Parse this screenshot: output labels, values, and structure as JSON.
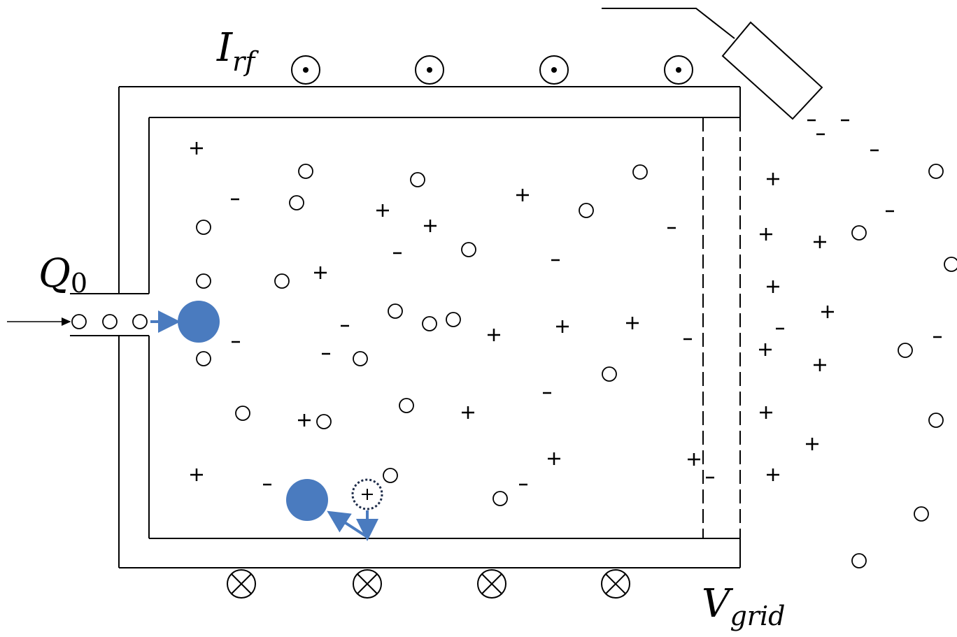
{
  "labels": {
    "current": {
      "symbol": "I",
      "subscript": "rf"
    },
    "flow": {
      "symbol": "Q",
      "subscript": "0"
    },
    "grid_voltage": {
      "symbol": "V",
      "subscript": "grid"
    }
  }
}
